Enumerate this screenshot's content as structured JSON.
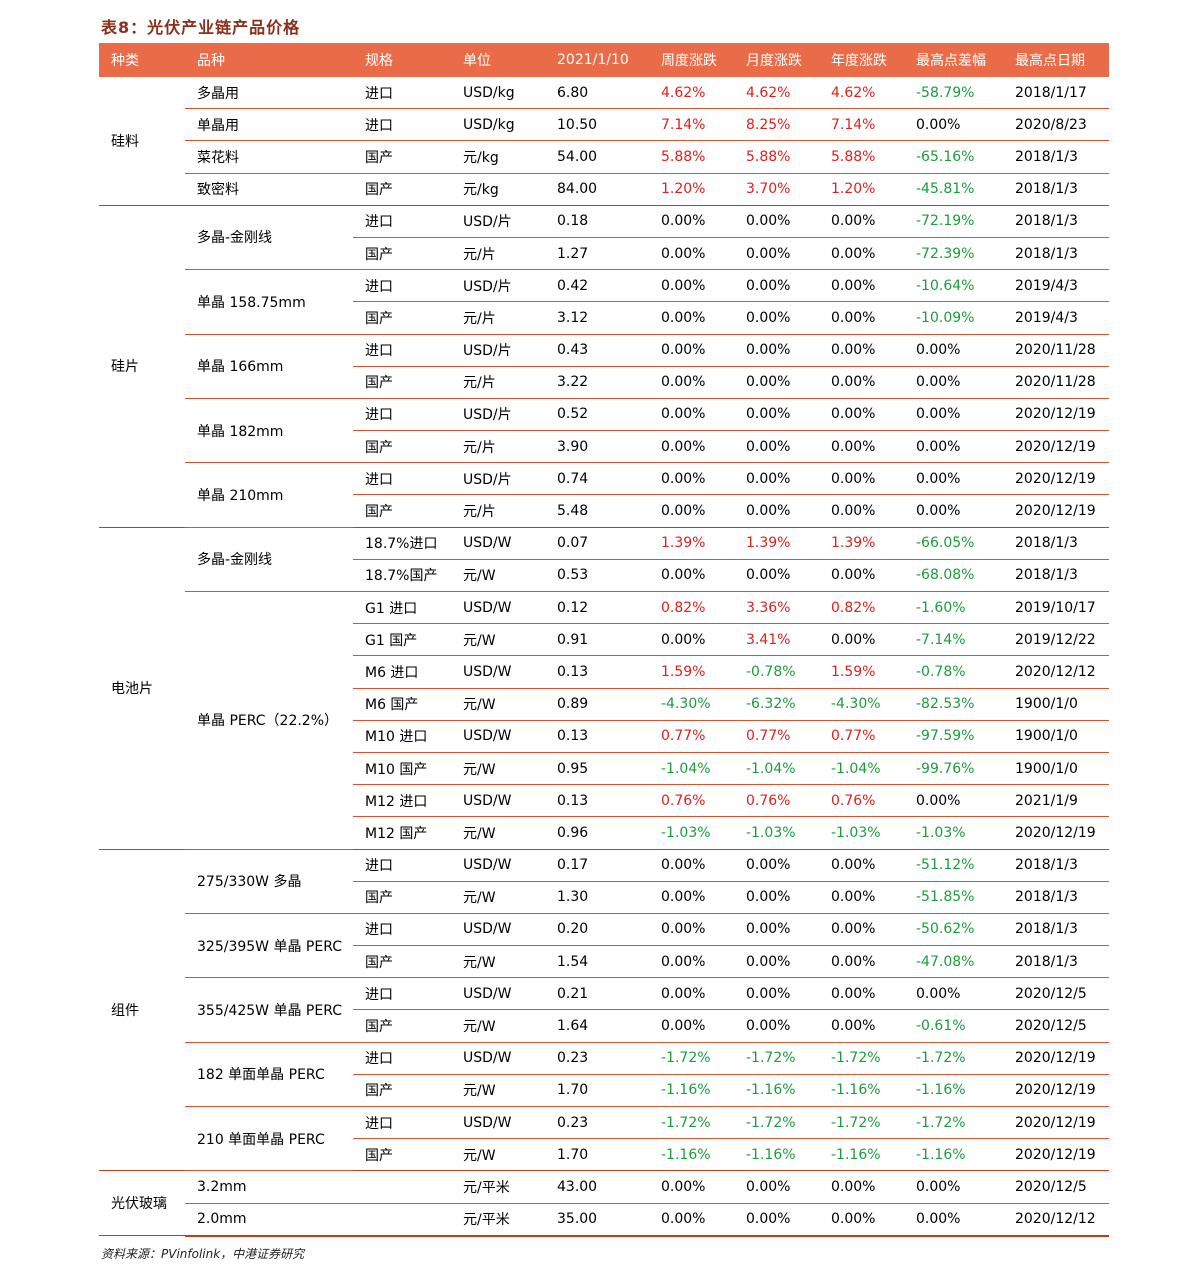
{
  "title": "表8：光伏产业链产品价格",
  "headers": [
    "种类",
    "品种",
    "规格",
    "单位",
    "2021/1/10",
    "周度涨跌",
    "月度涨跌",
    "年度涨跌",
    "最高点差幅",
    "最高点日期"
  ],
  "colors": {
    "header_bg": "#ea6b48",
    "title": "#8b2e1a",
    "rule": "#d9512d",
    "up": "#e0201b",
    "down": "#1a9e3a"
  },
  "rows": [
    {
      "cat": "硅料",
      "catspan": 4,
      "var": "多晶用",
      "varspan": 1,
      "spec": "进口",
      "unit": "USD/kg",
      "price": "6.80",
      "w": "4.62%",
      "m": "4.62%",
      "y": "4.62%",
      "d": "-58.79%",
      "date": "2018/1/17"
    },
    {
      "var": "单晶用",
      "varspan": 1,
      "spec": "进口",
      "unit": "USD/kg",
      "price": "10.50",
      "w": "7.14%",
      "m": "8.25%",
      "y": "7.14%",
      "d": "0.00%",
      "date": "2020/8/23"
    },
    {
      "var": "菜花料",
      "varspan": 1,
      "spec": "国产",
      "unit": "元/kg",
      "price": "54.00",
      "w": "5.88%",
      "m": "5.88%",
      "y": "5.88%",
      "d": "-65.16%",
      "date": "2018/1/3"
    },
    {
      "var": "致密料",
      "varspan": 1,
      "spec": "国产",
      "unit": "元/kg",
      "price": "84.00",
      "w": "1.20%",
      "m": "3.70%",
      "y": "1.20%",
      "d": "-45.81%",
      "date": "2018/1/3",
      "groupend": true
    },
    {
      "cat": "硅片",
      "catspan": 10,
      "var": "多晶-金刚线",
      "varspan": 2,
      "spec": "进口",
      "unit": "USD/片",
      "price": "0.18",
      "w": "0.00%",
      "m": "0.00%",
      "y": "0.00%",
      "d": "-72.19%",
      "date": "2018/1/3"
    },
    {
      "spec": "国产",
      "unit": "元/片",
      "price": "1.27",
      "w": "0.00%",
      "m": "0.00%",
      "y": "0.00%",
      "d": "-72.39%",
      "date": "2018/1/3"
    },
    {
      "var": "单晶 158.75mm",
      "varspan": 2,
      "spec": "进口",
      "unit": "USD/片",
      "price": "0.42",
      "w": "0.00%",
      "m": "0.00%",
      "y": "0.00%",
      "d": "-10.64%",
      "date": "2019/4/3"
    },
    {
      "spec": "国产",
      "unit": "元/片",
      "price": "3.12",
      "w": "0.00%",
      "m": "0.00%",
      "y": "0.00%",
      "d": "-10.09%",
      "date": "2019/4/3"
    },
    {
      "var": "单晶 166mm",
      "varspan": 2,
      "spec": "进口",
      "unit": "USD/片",
      "price": "0.43",
      "w": "0.00%",
      "m": "0.00%",
      "y": "0.00%",
      "d": "0.00%",
      "date": "2020/11/28"
    },
    {
      "spec": "国产",
      "unit": "元/片",
      "price": "3.22",
      "w": "0.00%",
      "m": "0.00%",
      "y": "0.00%",
      "d": "0.00%",
      "date": "2020/11/28"
    },
    {
      "var": "单晶 182mm",
      "varspan": 2,
      "spec": "进口",
      "unit": "USD/片",
      "price": "0.52",
      "w": "0.00%",
      "m": "0.00%",
      "y": "0.00%",
      "d": "0.00%",
      "date": "2020/12/19"
    },
    {
      "spec": "国产",
      "unit": "元/片",
      "price": "3.90",
      "w": "0.00%",
      "m": "0.00%",
      "y": "0.00%",
      "d": "0.00%",
      "date": "2020/12/19"
    },
    {
      "var": "单晶 210mm",
      "varspan": 2,
      "spec": "进口",
      "unit": "USD/片",
      "price": "0.74",
      "w": "0.00%",
      "m": "0.00%",
      "y": "0.00%",
      "d": "0.00%",
      "date": "2020/12/19"
    },
    {
      "spec": "国产",
      "unit": "元/片",
      "price": "5.48",
      "w": "0.00%",
      "m": "0.00%",
      "y": "0.00%",
      "d": "0.00%",
      "date": "2020/12/19",
      "groupend": true
    },
    {
      "cat": "电池片",
      "catspan": 10,
      "var": "多晶-金刚线",
      "varspan": 2,
      "spec": "18.7%进口",
      "unit": "USD/W",
      "price": "0.07",
      "w": "1.39%",
      "m": "1.39%",
      "y": "1.39%",
      "d": "-66.05%",
      "date": "2018/1/3"
    },
    {
      "spec": "18.7%国产",
      "unit": "元/W",
      "price": "0.53",
      "w": "0.00%",
      "m": "0.00%",
      "y": "0.00%",
      "d": "-68.08%",
      "date": "2018/1/3"
    },
    {
      "var": "单晶 PERC（22.2%）",
      "varspan": 8,
      "spec": "G1  进口",
      "unit": "USD/W",
      "price": "0.12",
      "w": "0.82%",
      "m": "3.36%",
      "y": "0.82%",
      "d": "-1.60%",
      "date": "2019/10/17"
    },
    {
      "spec": "G1  国产",
      "unit": "元/W",
      "price": "0.91",
      "w": "0.00%",
      "m": "3.41%",
      "y": "0.00%",
      "d": "-7.14%",
      "date": "2019/12/22"
    },
    {
      "spec": "M6  进口",
      "unit": "USD/W",
      "price": "0.13",
      "w": "1.59%",
      "m": "-0.78%",
      "y": "1.59%",
      "d": "-0.78%",
      "date": "2020/12/12"
    },
    {
      "spec": "M6  国产",
      "unit": "元/W",
      "price": "0.89",
      "w": "-4.30%",
      "m": "-6.32%",
      "y": "-4.30%",
      "d": "-82.53%",
      "date": "1900/1/0"
    },
    {
      "spec": "M10  进口",
      "unit": "USD/W",
      "price": "0.13",
      "w": "0.77%",
      "m": "0.77%",
      "y": "0.77%",
      "d": "-97.59%",
      "date": "1900/1/0"
    },
    {
      "spec": "M10  国产",
      "unit": "元/W",
      "price": "0.95",
      "w": "-1.04%",
      "m": "-1.04%",
      "y": "-1.04%",
      "d": "-99.76%",
      "date": "1900/1/0"
    },
    {
      "spec": "M12  进口",
      "unit": "USD/W",
      "price": "0.13",
      "w": "0.76%",
      "m": "0.76%",
      "y": "0.76%",
      "d": "0.00%",
      "date": "2021/1/9"
    },
    {
      "spec": "M12  国产",
      "unit": "元/W",
      "price": "0.96",
      "w": "-1.03%",
      "m": "-1.03%",
      "y": "-1.03%",
      "d": "-1.03%",
      "date": "2020/12/19",
      "groupend": true
    },
    {
      "cat": "组件",
      "catspan": 10,
      "var": "275/330W 多晶",
      "varspan": 2,
      "spec": "进口",
      "unit": "USD/W",
      "price": "0.17",
      "w": "0.00%",
      "m": "0.00%",
      "y": "0.00%",
      "d": "-51.12%",
      "date": "2018/1/3"
    },
    {
      "spec": "国产",
      "unit": "元/W",
      "price": "1.30",
      "w": "0.00%",
      "m": "0.00%",
      "y": "0.00%",
      "d": "-51.85%",
      "date": "2018/1/3"
    },
    {
      "var": "325/395W 单晶 PERC",
      "varspan": 2,
      "spec": "进口",
      "unit": "USD/W",
      "price": "0.20",
      "w": "0.00%",
      "m": "0.00%",
      "y": "0.00%",
      "d": "-50.62%",
      "date": "2018/1/3"
    },
    {
      "spec": "国产",
      "unit": "元/W",
      "price": "1.54",
      "w": "0.00%",
      "m": "0.00%",
      "y": "0.00%",
      "d": "-47.08%",
      "date": "2018/1/3"
    },
    {
      "var": "355/425W 单晶 PERC",
      "varspan": 2,
      "spec": "进口",
      "unit": "USD/W",
      "price": "0.21",
      "w": "0.00%",
      "m": "0.00%",
      "y": "0.00%",
      "d": "0.00%",
      "date": "2020/12/5"
    },
    {
      "spec": "国产",
      "unit": "元/W",
      "price": "1.64",
      "w": "0.00%",
      "m": "0.00%",
      "y": "0.00%",
      "d": "-0.61%",
      "date": "2020/12/5"
    },
    {
      "var": "182 单面单晶 PERC",
      "varspan": 2,
      "spec": "进口",
      "unit": "USD/W",
      "price": "0.23",
      "w": "-1.72%",
      "m": "-1.72%",
      "y": "-1.72%",
      "d": "-1.72%",
      "date": "2020/12/19"
    },
    {
      "spec": "国产",
      "unit": "元/W",
      "price": "1.70",
      "w": "-1.16%",
      "m": "-1.16%",
      "y": "-1.16%",
      "d": "-1.16%",
      "date": "2020/12/19"
    },
    {
      "var": "210 单面单晶 PERC",
      "varspan": 2,
      "spec": "进口",
      "unit": "USD/W",
      "price": "0.23",
      "w": "-1.72%",
      "m": "-1.72%",
      "y": "-1.72%",
      "d": "-1.72%",
      "date": "2020/12/19"
    },
    {
      "spec": "国产",
      "unit": "元/W",
      "price": "1.70",
      "w": "-1.16%",
      "m": "-1.16%",
      "y": "-1.16%",
      "d": "-1.16%",
      "date": "2020/12/19",
      "groupend": true
    },
    {
      "cat": "光伏玻璃",
      "catspan": 2,
      "var": "3.2mm",
      "varspan": 1,
      "spec": "",
      "unit": "元/平米",
      "price": "43.00",
      "w": "0.00%",
      "m": "0.00%",
      "y": "0.00%",
      "d": "0.00%",
      "date": "2020/12/5"
    },
    {
      "var": "2.0mm",
      "varspan": 1,
      "spec": "",
      "unit": "元/平米",
      "price": "35.00",
      "w": "0.00%",
      "m": "0.00%",
      "y": "0.00%",
      "d": "0.00%",
      "date": "2020/12/12",
      "last": true
    }
  ],
  "source": "资料来源：PVinfolink，中港证券研究"
}
